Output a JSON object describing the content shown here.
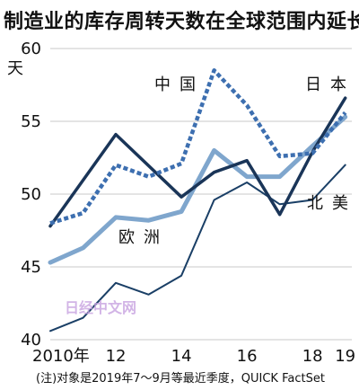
{
  "title": "制造业的库存周转天数在全球范围内延长",
  "note": "(注)对象是2019年7～9月等最近季度，QUICK FactSet",
  "watermark": "日经中文网",
  "chart_data": {
    "type": "line",
    "title": "制造业的库存周转天数在全球范围内延长",
    "ylabel": "天",
    "ylim": [
      40,
      60
    ],
    "yticks": [
      40,
      45,
      50,
      55,
      60
    ],
    "xlim": [
      2010,
      2019.2
    ],
    "xticks": [
      2010,
      2012,
      2014,
      2016,
      2018,
      2019
    ],
    "xtick_labels": [
      "2010年",
      "12",
      "14",
      "16",
      "18",
      "19"
    ],
    "series": [
      {
        "name": "中国",
        "style": "dotted",
        "color": "#3d6fb0",
        "x": [
          2010,
          2011,
          2012,
          2013,
          2014,
          2015,
          2016,
          2017,
          2018,
          2019
        ],
        "y": [
          48.0,
          48.7,
          52.0,
          51.2,
          52.1,
          58.5,
          56.1,
          52.6,
          52.8,
          55.6
        ]
      },
      {
        "name": "日本",
        "style": "solid",
        "color": "#1a3558",
        "x": [
          2010,
          2012,
          2014,
          2015,
          2016,
          2017,
          2018,
          2019
        ],
        "y": [
          47.8,
          54.1,
          49.8,
          51.5,
          52.3,
          48.6,
          52.9,
          56.6
        ]
      },
      {
        "name": "欧洲",
        "style": "solid",
        "color": "#7fa6cd",
        "x": [
          2010,
          2011,
          2012,
          2013,
          2014,
          2015,
          2016,
          2017,
          2018,
          2019
        ],
        "y": [
          45.3,
          46.3,
          48.4,
          48.2,
          48.8,
          53.0,
          51.2,
          51.2,
          53.3,
          55.3
        ]
      },
      {
        "name": "北美",
        "style": "solid",
        "color": "#1a3f66",
        "x": [
          2010,
          2011,
          2012,
          2013,
          2014,
          2015,
          2016,
          2017,
          2018,
          2019
        ],
        "y": [
          40.6,
          41.5,
          43.9,
          43.1,
          44.4,
          49.6,
          50.8,
          49.3,
          49.6,
          52.0
        ]
      }
    ]
  }
}
